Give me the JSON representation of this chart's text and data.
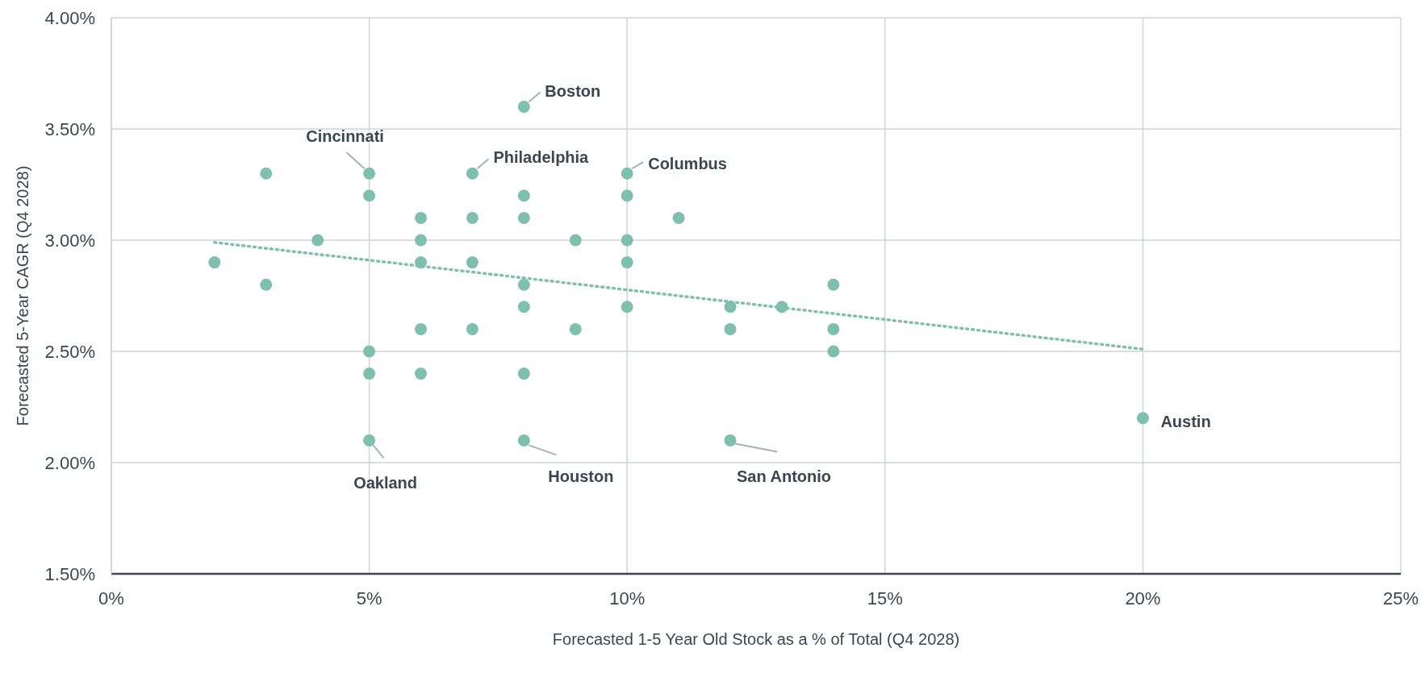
{
  "chart_data": {
    "type": "scatter",
    "xlabel": "Forecasted 1-5 Year Old Stock as a % of Total (Q4 2028)",
    "ylabel": "Forecasted 5-Year CAGR (Q4 2028)",
    "xlim": [
      0,
      25
    ],
    "xticks": [
      {
        "value": 0,
        "label": "0%"
      },
      {
        "value": 5,
        "label": "5%"
      },
      {
        "value": 10,
        "label": "10%"
      },
      {
        "value": 15,
        "label": "15%"
      },
      {
        "value": 20,
        "label": "20%"
      },
      {
        "value": 25,
        "label": "25%"
      }
    ],
    "ylim": [
      1.5,
      4.0
    ],
    "yticks": [
      {
        "value": 1.5,
        "label": "1.50%"
      },
      {
        "value": 2.0,
        "label": "2.00%"
      },
      {
        "value": 2.5,
        "label": "2.50%"
      },
      {
        "value": 3.0,
        "label": "3.00%"
      },
      {
        "value": 3.5,
        "label": "3.50%"
      },
      {
        "value": 4.0,
        "label": "4.00%"
      }
    ],
    "grid": true,
    "legend": false,
    "marker": "circle",
    "series": [
      {
        "type": "scatter",
        "color": "#7fbfad",
        "x": [
          2,
          3,
          3,
          4,
          5,
          5,
          5,
          5,
          5,
          6,
          6,
          6,
          6,
          6,
          7,
          7,
          7,
          7,
          8,
          8,
          8,
          8,
          8,
          8,
          8,
          9,
          9,
          10,
          10,
          10,
          10,
          10,
          11,
          12,
          12,
          12,
          13,
          14,
          14,
          14,
          20
        ],
        "values": [
          2.9,
          3.3,
          2.8,
          3.0,
          3.3,
          3.2,
          2.5,
          2.4,
          2.1,
          3.1,
          3.0,
          2.9,
          2.6,
          2.4,
          3.3,
          3.1,
          2.9,
          2.6,
          3.6,
          3.2,
          3.1,
          2.8,
          2.7,
          2.4,
          2.1,
          3.0,
          2.6,
          3.3,
          3.2,
          3.0,
          2.9,
          2.7,
          3.1,
          2.7,
          2.6,
          2.1,
          2.7,
          2.8,
          2.6,
          2.5,
          2.2
        ]
      },
      {
        "type": "line",
        "color": "#7fbfad",
        "line_style": "dotted",
        "marker": "none",
        "x": [
          2,
          20
        ],
        "values": [
          2.99,
          2.51
        ]
      }
    ],
    "annotations": [
      {
        "text": "Boston",
        "x": 8,
        "y": 3.6
      },
      {
        "text": "Cincinnati",
        "x": 5,
        "y": 3.3
      },
      {
        "text": "Philadelphia",
        "x": 7,
        "y": 3.3
      },
      {
        "text": "Columbus",
        "x": 10,
        "y": 3.3
      },
      {
        "text": "Oakland",
        "x": 5,
        "y": 2.1
      },
      {
        "text": "Houston",
        "x": 8,
        "y": 2.1
      },
      {
        "text": "San Antonio",
        "x": 12,
        "y": 2.1
      },
      {
        "text": "Austin",
        "x": 20,
        "y": 2.2
      }
    ]
  }
}
